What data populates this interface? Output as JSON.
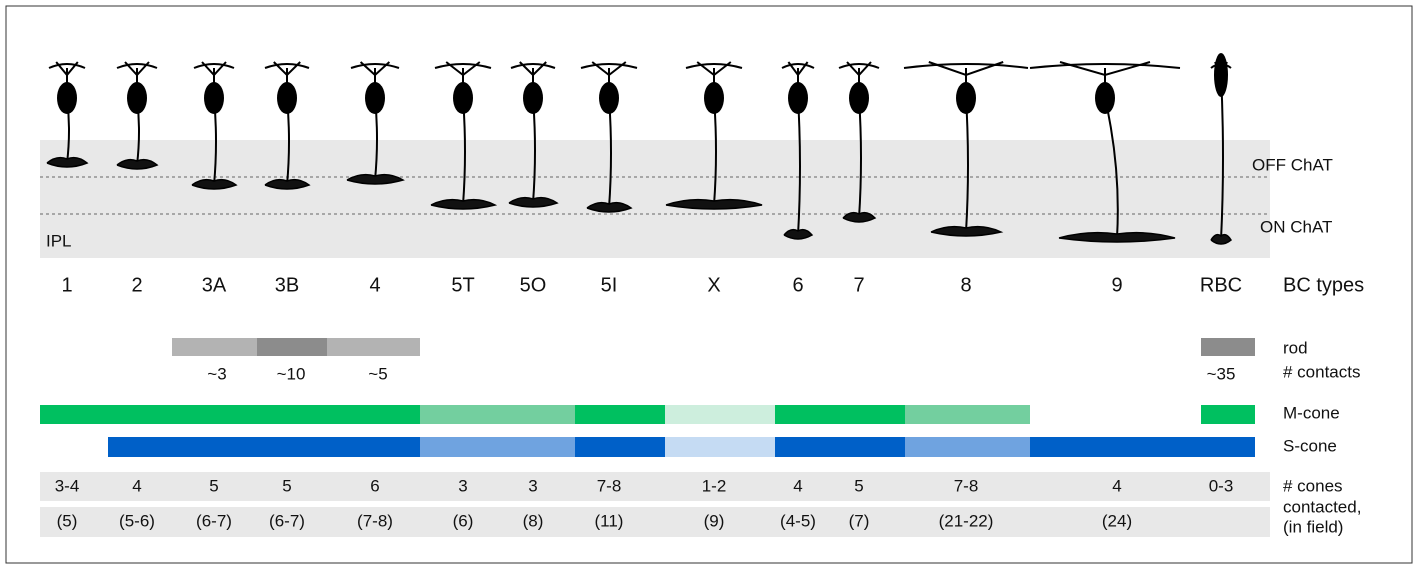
{
  "band_labels": {
    "off": "OFF ChAT",
    "on": "ON ChAT",
    "ipl": "IPL"
  },
  "types": [
    {
      "name": "1",
      "cones": "3-4",
      "in_field": "(5)"
    },
    {
      "name": "2",
      "cones": "4",
      "in_field": "(5-6)"
    },
    {
      "name": "3A",
      "cones": "5",
      "in_field": "(6-7)"
    },
    {
      "name": "3B",
      "cones": "5",
      "in_field": "(6-7)"
    },
    {
      "name": "4",
      "cones": "6",
      "in_field": "(7-8)"
    },
    {
      "name": "5T",
      "cones": "3",
      "in_field": "(6)"
    },
    {
      "name": "5O",
      "cones": "3",
      "in_field": "(8)"
    },
    {
      "name": "5I",
      "cones": "7-8",
      "in_field": "(11)"
    },
    {
      "name": "X",
      "cones": "1-2",
      "in_field": "(9)"
    },
    {
      "name": "6",
      "cones": "4",
      "in_field": "(4-5)"
    },
    {
      "name": "7",
      "cones": "5",
      "in_field": "(7)"
    },
    {
      "name": "8",
      "cones": "7-8",
      "in_field": "(21-22)"
    },
    {
      "name": "9",
      "cones": "4",
      "in_field": "(24)"
    },
    {
      "name": "RBC",
      "cones": "0-3"
    }
  ],
  "rod_contacts": [
    "~3",
    "~10",
    "~5",
    "~35"
  ],
  "row_labels": {
    "types": "BC types",
    "rod": "rod",
    "contacts": "# contacts",
    "m_cone": "M-cone",
    "s_cone": "S-cone",
    "cones": [
      "# cones",
      "contacted,",
      "(in field)"
    ]
  }
}
